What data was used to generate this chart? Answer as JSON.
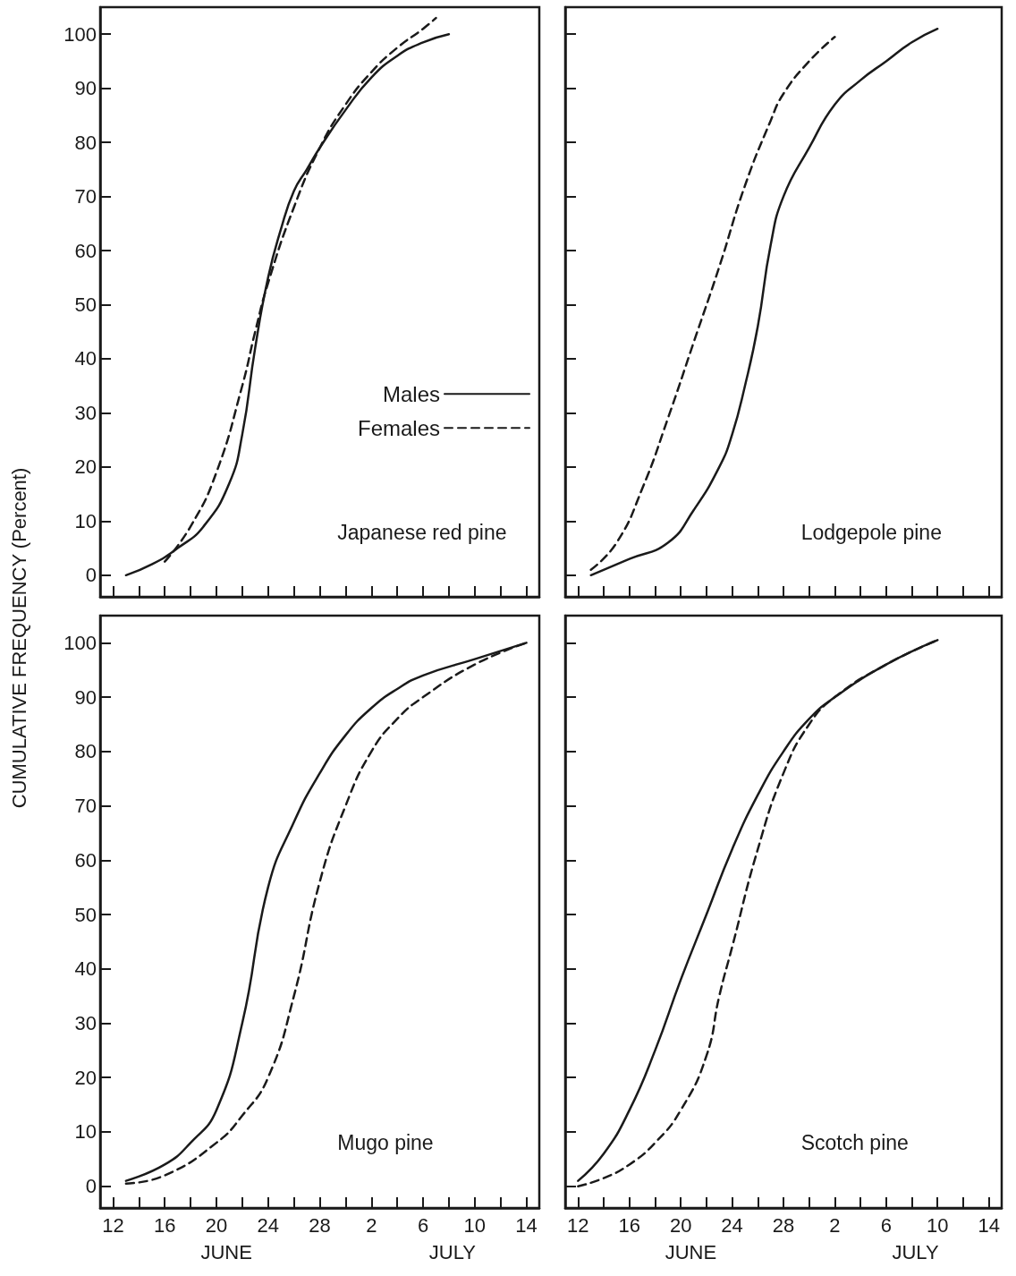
{
  "chart_data": [
    {
      "type": "line",
      "title": "Japanese red pine",
      "ylabel": "CUMULATIVE FREQUENCY (Percent)",
      "xlim": [
        "--06-11",
        "--07-15"
      ],
      "xticks": [
        {
          "value": "--06-12",
          "label": "12"
        },
        {
          "value": "--06-14",
          "label": null
        },
        {
          "value": "--06-16",
          "label": "16"
        },
        {
          "value": "--06-18",
          "label": null
        },
        {
          "value": "--06-20",
          "label": "20"
        },
        {
          "value": "--06-22",
          "label": null
        },
        {
          "value": "--06-24",
          "label": "24"
        },
        {
          "value": "--06-26",
          "label": null
        },
        {
          "value": "--06-28",
          "label": "28"
        },
        {
          "value": "--06-30",
          "label": null
        },
        {
          "value": "--07-02",
          "label": "2"
        },
        {
          "value": "--07-04",
          "label": null
        },
        {
          "value": "--07-06",
          "label": "6"
        },
        {
          "value": "--07-08",
          "label": null
        },
        {
          "value": "--07-10",
          "label": "10"
        },
        {
          "value": "--07-12",
          "label": null
        },
        {
          "value": "--07-14",
          "label": "14"
        }
      ],
      "ylim": [
        -4,
        105
      ],
      "yticks": [
        0,
        10,
        20,
        30,
        40,
        50,
        60,
        70,
        80,
        90,
        100
      ],
      "tick_labels": "y",
      "legend": "right",
      "marker": "none",
      "grid": false,
      "series": [
        {
          "name": "Males",
          "color": "#1a1a1a",
          "line_style": "solid",
          "x": [
            "--06-13",
            "--06-15",
            "--06-17",
            "--06-19",
            "--06-21",
            "--06-22",
            "--06-23",
            "--06-24",
            "--06-25",
            "--06-26",
            "--06-27",
            "--06-28",
            "--06-30",
            "--07-02",
            "--07-04",
            "--07-06",
            "--07-08"
          ],
          "values": [
            0,
            2,
            5,
            9,
            17,
            26,
            42,
            55,
            64,
            71,
            75,
            79,
            86,
            92,
            96,
            98.5,
            100
          ]
        },
        {
          "name": "Females",
          "color": "#1a1a1a",
          "line_style": "dashed",
          "x": [
            "--06-16",
            "--06-18",
            "--06-20",
            "--06-22",
            "--06-23",
            "--06-24",
            "--06-26",
            "--06-28",
            "--06-30",
            "--07-02",
            "--07-04",
            "--07-06",
            "--07-07"
          ],
          "values": [
            2.5,
            9,
            19,
            35,
            45,
            54,
            68,
            79,
            87,
            93,
            97.5,
            101,
            103
          ]
        }
      ]
    },
    {
      "type": "line",
      "title": "Lodgepole pine",
      "xlim": [
        "--06-11",
        "--07-15"
      ],
      "xticks": [
        {
          "value": "--06-12",
          "label": "12"
        },
        {
          "value": "--06-14",
          "label": null
        },
        {
          "value": "--06-16",
          "label": "16"
        },
        {
          "value": "--06-18",
          "label": null
        },
        {
          "value": "--06-20",
          "label": "20"
        },
        {
          "value": "--06-22",
          "label": null
        },
        {
          "value": "--06-24",
          "label": "24"
        },
        {
          "value": "--06-26",
          "label": null
        },
        {
          "value": "--06-28",
          "label": "28"
        },
        {
          "value": "--06-30",
          "label": null
        },
        {
          "value": "--07-02",
          "label": "2"
        },
        {
          "value": "--07-04",
          "label": null
        },
        {
          "value": "--07-06",
          "label": "6"
        },
        {
          "value": "--07-08",
          "label": null
        },
        {
          "value": "--07-10",
          "label": "10"
        },
        {
          "value": "--07-12",
          "label": null
        },
        {
          "value": "--07-14",
          "label": "14"
        }
      ],
      "ylim": [
        -4,
        105
      ],
      "yticks": [
        0,
        10,
        20,
        30,
        40,
        50,
        60,
        70,
        80,
        90,
        100
      ],
      "tick_labels": false,
      "marker": "none",
      "grid": false,
      "series": [
        {
          "color": "#1a1a1a",
          "line_style": "solid",
          "x": [
            "--06-13",
            "--06-16",
            "--06-19",
            "--06-21",
            "--06-23",
            "--06-24",
            "--06-25",
            "--06-26",
            "--06-27",
            "--06-28",
            "--06-30",
            "--07-02",
            "--07-04",
            "--07-06",
            "--07-08",
            "--07-10"
          ],
          "values": [
            0,
            3,
            6,
            12,
            20,
            26,
            35,
            46,
            61,
            70,
            79,
            87,
            91.5,
            95,
            98.5,
            101
          ]
        },
        {
          "color": "#1a1a1a",
          "line_style": "dashed",
          "x": [
            "--06-13",
            "--06-15",
            "--06-17",
            "--06-19",
            "--06-21",
            "--06-23",
            "--06-25",
            "--06-27",
            "--06-28",
            "--06-30",
            "--07-02"
          ],
          "values": [
            1,
            6,
            16,
            29,
            43,
            57,
            72,
            84,
            89,
            95,
            99.5
          ]
        }
      ]
    },
    {
      "type": "line",
      "title": "Mugo pine",
      "annotations": [
        "JUNE",
        "JULY"
      ],
      "xlim": [
        "--06-11",
        "--07-15"
      ],
      "xticks": [
        {
          "value": "--06-12",
          "label": "12"
        },
        {
          "value": "--06-14",
          "label": null
        },
        {
          "value": "--06-16",
          "label": "16"
        },
        {
          "value": "--06-18",
          "label": null
        },
        {
          "value": "--06-20",
          "label": "20"
        },
        {
          "value": "--06-22",
          "label": null
        },
        {
          "value": "--06-24",
          "label": "24"
        },
        {
          "value": "--06-26",
          "label": null
        },
        {
          "value": "--06-28",
          "label": "28"
        },
        {
          "value": "--06-30",
          "label": null
        },
        {
          "value": "--07-02",
          "label": "2"
        },
        {
          "value": "--07-04",
          "label": null
        },
        {
          "value": "--07-06",
          "label": "6"
        },
        {
          "value": "--07-08",
          "label": null
        },
        {
          "value": "--07-10",
          "label": "10"
        },
        {
          "value": "--07-12",
          "label": null
        },
        {
          "value": "--07-14",
          "label": "14"
        }
      ],
      "ylim": [
        -4,
        105
      ],
      "yticks": [
        0,
        10,
        20,
        30,
        40,
        50,
        60,
        70,
        80,
        90,
        100
      ],
      "marker": "none",
      "grid": false,
      "series": [
        {
          "color": "#1a1a1a",
          "line_style": "solid",
          "x": [
            "--06-13",
            "--06-16",
            "--06-18",
            "--06-20",
            "--06-22",
            "--06-24",
            "--06-26",
            "--06-28",
            "--06-30",
            "--07-02",
            "--07-04",
            "--07-06",
            "--07-10",
            "--07-14"
          ],
          "values": [
            1,
            4,
            8,
            14,
            30,
            55,
            67,
            76,
            83,
            88,
            91.5,
            94,
            97,
            100
          ]
        },
        {
          "color": "#1a1a1a",
          "line_style": "dashed",
          "x": [
            "--06-13",
            "--06-16",
            "--06-20",
            "--06-22",
            "--06-24",
            "--06-26",
            "--06-28",
            "--06-30",
            "--07-02",
            "--07-04",
            "--07-06",
            "--07-10",
            "--07-14"
          ],
          "values": [
            0.5,
            2,
            8,
            13,
            20,
            35,
            56,
            70,
            80,
            86,
            90,
            96,
            100
          ]
        }
      ]
    },
    {
      "type": "line",
      "title": "Scotch pine",
      "annotations": [
        "JUNE",
        "JULY"
      ],
      "xlim": [
        "--06-11",
        "--07-15"
      ],
      "xticks": [
        {
          "value": "--06-12",
          "label": "12"
        },
        {
          "value": "--06-14",
          "label": null
        },
        {
          "value": "--06-16",
          "label": "16"
        },
        {
          "value": "--06-18",
          "label": null
        },
        {
          "value": "--06-20",
          "label": "20"
        },
        {
          "value": "--06-22",
          "label": null
        },
        {
          "value": "--06-24",
          "label": "24"
        },
        {
          "value": "--06-26",
          "label": null
        },
        {
          "value": "--06-28",
          "label": "28"
        },
        {
          "value": "--06-30",
          "label": null
        },
        {
          "value": "--07-02",
          "label": "2"
        },
        {
          "value": "--07-04",
          "label": null
        },
        {
          "value": "--07-06",
          "label": "6"
        },
        {
          "value": "--07-08",
          "label": null
        },
        {
          "value": "--07-10",
          "label": "10"
        },
        {
          "value": "--07-12",
          "label": null
        },
        {
          "value": "--07-14",
          "label": "14"
        }
      ],
      "ylim": [
        -4,
        105
      ],
      "yticks": [
        0,
        10,
        20,
        30,
        40,
        50,
        60,
        70,
        80,
        90,
        100
      ],
      "tick_labels": "x",
      "marker": "none",
      "grid": false,
      "series": [
        {
          "color": "#1a1a1a",
          "line_style": "solid",
          "x": [
            "--06-12",
            "--06-14",
            "--06-16",
            "--06-18",
            "--06-20",
            "--06-22",
            "--06-24",
            "--06-26",
            "--06-28",
            "--06-30",
            "--07-02",
            "--07-06",
            "--07-10"
          ],
          "values": [
            1,
            6,
            14,
            25,
            38,
            50,
            62,
            72,
            80,
            86,
            90,
            96,
            100.5
          ]
        },
        {
          "color": "#1a1a1a",
          "line_style": "dashed",
          "x": [
            "--06-12",
            "--06-14",
            "--06-16",
            "--06-18",
            "--06-20",
            "--06-22",
            "--06-23",
            "--06-24",
            "--06-26",
            "--06-28",
            "--06-30",
            "--07-02",
            "--07-06",
            "--07-10"
          ],
          "values": [
            0,
            1.5,
            4,
            8,
            14,
            24,
            35,
            44,
            62,
            76,
            85,
            90,
            96,
            100.5
          ]
        }
      ]
    }
  ]
}
